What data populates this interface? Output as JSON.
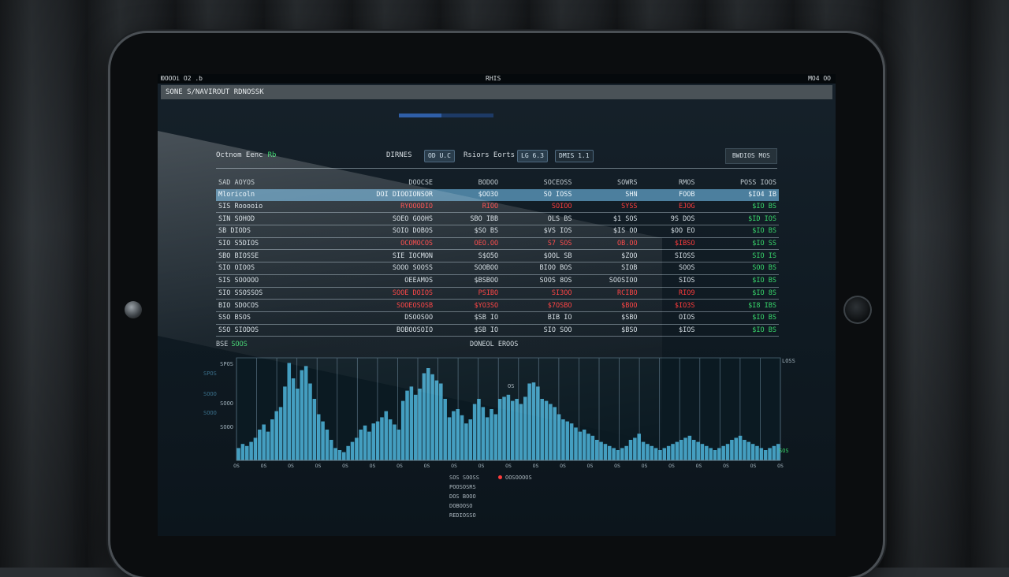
{
  "status_bar": {
    "time": "ЮOOOi O2 .b",
    "center": "RHIS",
    "right": "MO4 OO"
  },
  "window_title": "SONE S/NAVIROUT RDNOSSK",
  "progress_value": 0.45,
  "toolbar": {
    "title": "Octnom Eenc",
    "title_badge": "Rb",
    "filter1_label": "DIRNES",
    "filter1_value": "OD U.C",
    "filter2_label": "Rsiors Eorts",
    "filter2_value": "LG 6.3",
    "filter3_value": "DMIS 1.1",
    "action_button": "BWDIOS MOS"
  },
  "table": {
    "headers": [
      "SAD AOYOS",
      "DOOCSE",
      "BODOO",
      "SOCEOSS",
      "SOWRS",
      "RMOS",
      "POSS IOOS"
    ],
    "rows": [
      [
        "Mloricoln",
        "DOI DIOOIONSOR",
        "$OO3O",
        "SO IOSS",
        "SHN",
        "FOOB",
        "$IO4 IB",
        "sel"
      ],
      [
        "SIS Rooooio",
        "RYOOODIO",
        "RIOO",
        "SOIOO",
        "SYSS",
        "EJOG",
        "$IO BS",
        "neg"
      ],
      [
        "SIN SOHOD",
        "SOEO GOOHS",
        "SBO IBB",
        "OLS BS",
        "$1 SOS",
        "9S DOS",
        "$ID IOS",
        "pos"
      ],
      [
        "SB DIODS",
        "SOIO DOBOS",
        "$SO BS",
        "$VS IOS",
        "$IS OO",
        "$OO EO",
        "$IO BS",
        "pos"
      ],
      [
        "SIO S5DIOS",
        "OCOMOCOS",
        "OEO.OO",
        "S7 SOS",
        "OB.OO",
        "$IBSO",
        "$IO SS",
        "neg"
      ],
      [
        "SBO BIOSSE",
        "SIE IOCMON",
        "S$O5O",
        "$OOL SB",
        "$ZOO",
        "SIOSS",
        "SIO IS",
        "pos"
      ],
      [
        "SIO OIOOS",
        "SOOO SOOSS",
        "SOOBOO",
        "BIOO BOS",
        "SIOB",
        "SOOS",
        "SOO BS",
        "pos"
      ],
      [
        "SIS SOOOOO",
        "OEEAMOS",
        "$BSBOO",
        "SOOS 8OS",
        "SOOSIOO",
        "SIOS",
        "$IO BS",
        "pos"
      ],
      [
        "SIO SSOSSOS",
        "SOOE DOIOS",
        "PSIBO",
        "SI3OO",
        "RCIBO",
        "RIO9",
        "$IO 8S",
        "neg"
      ],
      [
        "BIO SDOCOS",
        "SOOEOSOSB",
        "$YO3SO",
        "$7OSBO",
        "$BOO",
        "$IO3S",
        "$I8 IBS",
        "neg"
      ],
      [
        "SSO BSOS",
        "DSOOSOO",
        "$SB IO",
        "BIB IO",
        "$SBO",
        "OIOS",
        "$IO BS",
        "pos"
      ],
      [
        "SSO SIODOS",
        "BOBOOSOIO",
        "$SB IO",
        "SIO SOO",
        "$BSO",
        "$IOS",
        "$IO BS",
        "pos"
      ]
    ],
    "footer_label": "BSE",
    "footer_value": "SOOS"
  },
  "chart_data": {
    "type": "bar",
    "title": "DONEOL EROOS",
    "ylabel_ticks": [
      "SPOS",
      "SOOO",
      "SOOO"
    ],
    "right_label": "LOSS",
    "right_label2": "SOS",
    "annotation": "OS",
    "xtick_labels": [
      "OS",
      "OS",
      "OS",
      "OS",
      "OS",
      "OS",
      "OS",
      "OS",
      "OS",
      "OS",
      "OS",
      "OS",
      "OS",
      "OS",
      "OS",
      "OS",
      "OS",
      "OS",
      "OS",
      "OS",
      "OS"
    ],
    "ylim": [
      0,
      100
    ],
    "values": [
      12,
      16,
      14,
      18,
      22,
      30,
      35,
      28,
      40,
      48,
      52,
      72,
      95,
      80,
      70,
      88,
      92,
      75,
      60,
      45,
      38,
      30,
      20,
      12,
      10,
      8,
      14,
      18,
      22,
      30,
      34,
      28,
      36,
      38,
      42,
      48,
      40,
      35,
      30,
      58,
      68,
      72,
      64,
      70,
      85,
      90,
      84,
      78,
      75,
      60,
      42,
      48,
      50,
      44,
      36,
      40,
      55,
      60,
      52,
      42,
      50,
      45,
      60,
      62,
      64,
      58,
      60,
      55,
      62,
      75,
      76,
      72,
      60,
      58,
      55,
      52,
      45,
      40,
      38,
      36,
      32,
      28,
      30,
      26,
      24,
      20,
      18,
      16,
      14,
      12,
      10,
      12,
      14,
      20,
      22,
      26,
      18,
      16,
      14,
      12,
      10,
      12,
      14,
      16,
      18,
      20,
      22,
      24,
      20,
      18,
      16,
      14,
      12,
      10,
      12,
      14,
      16,
      20,
      22,
      24,
      20,
      18,
      16,
      14,
      12,
      10,
      12,
      14,
      16
    ],
    "legend": [
      "SOS SOOSS",
      "OOSOOOOS",
      "POOSOSRS",
      "DOS BOOO",
      "DOBOOSO",
      "REDIOSSO"
    ]
  }
}
